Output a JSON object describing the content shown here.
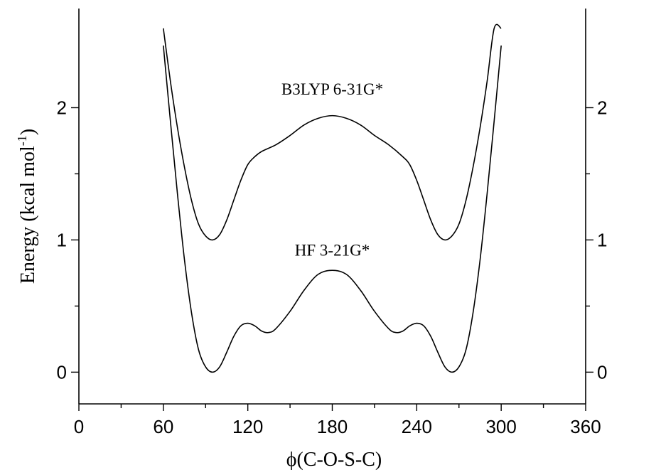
{
  "chart_data": {
    "type": "line",
    "title": "",
    "xlabel": "ϕ(C-O-S-C)",
    "ylabel_main": "Energy (kcal mol",
    "ylabel_sup": "-1",
    "ylabel_close": ")",
    "xlim": [
      0,
      360
    ],
    "ylim": [
      -0.24,
      2.75
    ],
    "x_ticks_major": [
      0,
      60,
      120,
      180,
      240,
      300,
      360
    ],
    "x_ticks_minor": [
      30,
      90,
      150,
      210,
      270,
      330
    ],
    "y_ticks_major": [
      0,
      1,
      2
    ],
    "y_ticks_minor": [
      0.5,
      1.5
    ],
    "grid": false,
    "series": [
      {
        "label": "B3LYP 6-31G*",
        "x": [
          60,
          65,
          70,
          75,
          80,
          85,
          90,
          95,
          100,
          105,
          110,
          115,
          120,
          125,
          130,
          140,
          150,
          160,
          170,
          180,
          190,
          200,
          210,
          220,
          230,
          235,
          240,
          245,
          250,
          255,
          260,
          265,
          270,
          275,
          280,
          285,
          290,
          295,
          300
        ],
        "y": [
          2.6,
          2.2,
          1.85,
          1.55,
          1.3,
          1.12,
          1.03,
          1.0,
          1.04,
          1.15,
          1.3,
          1.45,
          1.57,
          1.63,
          1.67,
          1.72,
          1.79,
          1.87,
          1.92,
          1.94,
          1.92,
          1.87,
          1.79,
          1.72,
          1.63,
          1.57,
          1.45,
          1.3,
          1.15,
          1.04,
          1.0,
          1.03,
          1.12,
          1.3,
          1.55,
          1.85,
          2.2,
          2.6,
          2.6
        ]
      },
      {
        "label": "HF 3-21G*",
        "x": [
          60,
          65,
          70,
          75,
          80,
          85,
          90,
          95,
          100,
          105,
          110,
          115,
          120,
          125,
          130,
          135,
          140,
          150,
          160,
          170,
          180,
          190,
          200,
          210,
          220,
          225,
          230,
          235,
          240,
          245,
          250,
          255,
          260,
          265,
          270,
          275,
          280,
          285,
          290,
          295,
          300
        ],
        "y": [
          2.47,
          1.9,
          1.35,
          0.85,
          0.45,
          0.17,
          0.04,
          0.0,
          0.04,
          0.15,
          0.27,
          0.35,
          0.37,
          0.35,
          0.31,
          0.3,
          0.33,
          0.46,
          0.62,
          0.74,
          0.77,
          0.74,
          0.62,
          0.46,
          0.33,
          0.3,
          0.31,
          0.35,
          0.37,
          0.35,
          0.27,
          0.15,
          0.04,
          0.0,
          0.04,
          0.17,
          0.45,
          0.85,
          1.35,
          1.9,
          2.47
        ]
      }
    ],
    "annotations": [
      {
        "text": "B3LYP 6-31G*",
        "x": 180,
        "y": 2.1
      },
      {
        "text": "HF 3-21G*",
        "x": 180,
        "y": 0.88
      }
    ]
  }
}
